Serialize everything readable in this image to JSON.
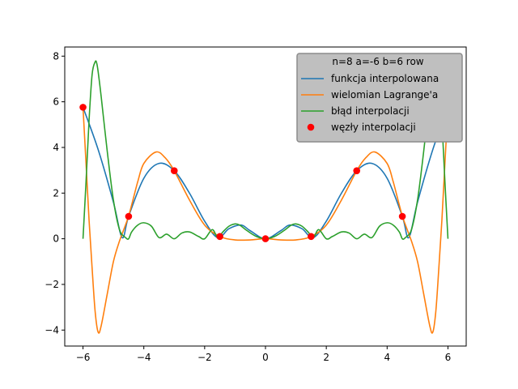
{
  "chart_data": {
    "type": "line",
    "title": "",
    "xlabel": "",
    "ylabel": "",
    "xlim": [
      -6.6,
      6.6
    ],
    "ylim": [
      -4.7,
      8.4
    ],
    "grid": false,
    "legend_placement": "top-right",
    "legend_title": "n=8 a=-6 b=6 row",
    "x_ticks": [
      -6,
      -4,
      -2,
      0,
      2,
      4,
      6
    ],
    "y_ticks": [
      -4,
      -2,
      0,
      2,
      4,
      6,
      8
    ],
    "series": [
      {
        "name": "funkcja interpolowana",
        "color": "#1f77b4",
        "type": "line",
        "x": [
          -6,
          -5.5,
          -5.0,
          -4.712,
          -4.5,
          -4.0,
          -3.5,
          -3.0,
          -2.5,
          -2.0,
          -1.571,
          -1.2,
          -0.8,
          -0.5,
          0,
          0.5,
          0.8,
          1.2,
          1.571,
          2.0,
          2.5,
          3.0,
          3.5,
          4.0,
          4.5,
          4.712,
          5.0,
          5.5,
          6.0
        ],
        "y": [
          5.76,
          3.9,
          1.6,
          0.05,
          0.98,
          2.65,
          3.3,
          2.98,
          2.0,
          0.77,
          0.05,
          0.44,
          0.6,
          0.35,
          0.0,
          0.35,
          0.6,
          0.44,
          0.05,
          0.77,
          2.0,
          2.98,
          3.3,
          2.65,
          0.98,
          0.05,
          1.6,
          3.9,
          5.76
        ]
      },
      {
        "name": "wielomian Lagrange'a",
        "color": "#ff7f0e",
        "type": "line",
        "x": [
          -6,
          -5.9,
          -5.8,
          -5.7,
          -5.6,
          -5.5,
          -5.4,
          -5.2,
          -5.0,
          -4.8,
          -4.5,
          -4.2,
          -4.0,
          -3.6,
          -3.3,
          -3.0,
          -2.5,
          -2.0,
          -1.5,
          -1.0,
          -0.5,
          0,
          0.5,
          1.0,
          1.5,
          2.0,
          2.5,
          3.0,
          3.3,
          3.6,
          4.0,
          4.2,
          4.5,
          4.8,
          5.0,
          5.2,
          5.4,
          5.5,
          5.6,
          5.7,
          5.8,
          5.9,
          6.0
        ],
        "y": [
          5.76,
          3.3,
          0.8,
          -1.3,
          -3.2,
          -4.1,
          -3.8,
          -2.4,
          -1.0,
          -0.1,
          1.0,
          2.5,
          3.3,
          3.8,
          3.55,
          2.98,
          1.7,
          0.6,
          0.1,
          -0.05,
          -0.05,
          0.0,
          -0.05,
          -0.05,
          0.1,
          0.6,
          1.7,
          2.98,
          3.55,
          3.8,
          3.3,
          2.5,
          1.0,
          -0.1,
          -1.0,
          -2.4,
          -3.8,
          -4.1,
          -3.2,
          -1.3,
          0.8,
          3.3,
          5.76
        ]
      },
      {
        "name": "błąd interpolacji",
        "color": "#2ca02c",
        "type": "line",
        "x": [
          -6,
          -5.9,
          -5.8,
          -5.7,
          -5.6,
          -5.55,
          -5.5,
          -5.4,
          -5.2,
          -5.0,
          -4.8,
          -4.6,
          -4.5,
          -4.4,
          -4.2,
          -4.0,
          -3.75,
          -3.5,
          -3.25,
          -3.0,
          -2.75,
          -2.5,
          -2.2,
          -2.0,
          -1.75,
          -1.571,
          -1.4,
          -1.2,
          -1.0,
          -0.85,
          -0.6,
          -0.3,
          0,
          0.3,
          0.6,
          0.85,
          1.0,
          1.2,
          1.4,
          1.571,
          1.75,
          2.0,
          2.2,
          2.5,
          2.75,
          3.0,
          3.25,
          3.5,
          3.75,
          4.0,
          4.2,
          4.4,
          4.5,
          4.6,
          4.8,
          5.0,
          5.2,
          5.4,
          5.5,
          5.55,
          5.6,
          5.7,
          5.8,
          5.9,
          6.0
        ],
        "y": [
          0.0,
          2.5,
          5.2,
          7.2,
          7.75,
          7.7,
          7.3,
          6.2,
          3.8,
          1.7,
          0.4,
          0.05,
          0.0,
          0.3,
          0.6,
          0.7,
          0.55,
          0.05,
          0.2,
          0.0,
          0.25,
          0.3,
          0.1,
          0.0,
          0.4,
          0.05,
          0.3,
          0.55,
          0.65,
          0.6,
          0.35,
          0.1,
          0.0,
          0.1,
          0.35,
          0.6,
          0.65,
          0.55,
          0.3,
          0.05,
          0.4,
          0.0,
          0.1,
          0.3,
          0.25,
          0.0,
          0.2,
          0.05,
          0.55,
          0.7,
          0.6,
          0.3,
          0.0,
          0.05,
          0.4,
          1.7,
          3.8,
          6.2,
          7.3,
          7.7,
          7.75,
          7.2,
          5.2,
          2.5,
          0.0
        ]
      },
      {
        "name": "węzły interpolacji",
        "color": "#ff0000",
        "type": "scatter",
        "x": [
          -6,
          -4.5,
          -3,
          -1.5,
          0,
          1.5,
          3,
          4.5,
          6
        ],
        "y": [
          5.76,
          0.98,
          2.98,
          0.1,
          0.0,
          0.1,
          2.98,
          0.98,
          5.76
        ]
      }
    ]
  }
}
